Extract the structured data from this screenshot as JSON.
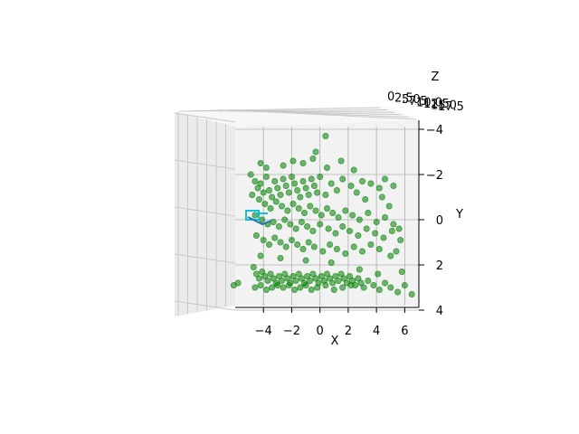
{
  "chart_data": {
    "type": "scatter",
    "projection": "3d",
    "view": "looking down the z axis; x horizontal, y vertical (inverted, -4 at top)",
    "title": "",
    "xlabel": "X",
    "ylabel": "Y",
    "zlabel": "Z",
    "xlim": [
      -6,
      7
    ],
    "ylim": [
      -4,
      4
    ],
    "y_inverted": true,
    "xticks": [
      "−4",
      "−2",
      "0",
      "2",
      "4",
      "6"
    ],
    "yticks": [
      "−4",
      "−2",
      "0",
      "2",
      "4"
    ],
    "zticks_overlapping": [
      "0",
      "2.5",
      "5.0",
      "7.5",
      "10.0",
      "12.5",
      "15.0",
      "17.5"
    ],
    "grid": true,
    "marker_color": "#008000",
    "marker_alpha": 0.55,
    "series": [
      {
        "points": [
          [
            -4.9,
            -2.0
          ],
          [
            -4.6,
            -1.7
          ],
          [
            -4.4,
            -1.4
          ],
          [
            -4.2,
            -1.6
          ],
          [
            -4.0,
            -1.2
          ],
          [
            -3.8,
            -1.9
          ],
          [
            -3.6,
            -1.3
          ],
          [
            -3.4,
            -1.0
          ],
          [
            -3.2,
            -1.7
          ],
          [
            -3.0,
            -1.4
          ],
          [
            -2.8,
            -1.1
          ],
          [
            -2.6,
            -1.8
          ],
          [
            -2.4,
            -1.5
          ],
          [
            -2.2,
            -1.2
          ],
          [
            -2.0,
            -1.9
          ],
          [
            -1.8,
            -1.6
          ],
          [
            -1.6,
            -1.3
          ],
          [
            -1.4,
            -1.0
          ],
          [
            -1.2,
            -1.7
          ],
          [
            -1.0,
            -1.4
          ],
          [
            -0.8,
            -1.1
          ],
          [
            -0.6,
            -1.8
          ],
          [
            -0.4,
            -1.5
          ],
          [
            -0.2,
            -1.2
          ],
          [
            0.0,
            -1.9
          ],
          [
            0.4,
            -1.1
          ],
          [
            0.8,
            -1.6
          ],
          [
            1.2,
            -1.3
          ],
          [
            1.6,
            -1.8
          ],
          [
            2.2,
            -1.5
          ],
          [
            2.6,
            -1.2
          ],
          [
            3.0,
            -1.7
          ],
          [
            3.6,
            -1.6
          ],
          [
            4.2,
            -1.4
          ],
          [
            4.6,
            -1.8
          ],
          [
            5.2,
            -1.5
          ],
          [
            -4.8,
            -1.1
          ],
          [
            -4.3,
            -0.9
          ],
          [
            -3.9,
            -0.7
          ],
          [
            -3.5,
            -0.5
          ],
          [
            -3.1,
            -0.8
          ],
          [
            -2.7,
            -0.6
          ],
          [
            -2.3,
            -0.4
          ],
          [
            -1.9,
            -0.7
          ],
          [
            -1.5,
            -0.5
          ],
          [
            -1.1,
            -0.3
          ],
          [
            -0.7,
            -0.6
          ],
          [
            -0.3,
            -0.4
          ],
          [
            0.1,
            -0.2
          ],
          [
            0.5,
            -0.5
          ],
          [
            0.9,
            -0.3
          ],
          [
            1.3,
            -0.1
          ],
          [
            1.8,
            -0.4
          ],
          [
            2.3,
            -0.2
          ],
          [
            2.8,
            0.0
          ],
          [
            3.4,
            -0.3
          ],
          [
            4.0,
            0.1
          ],
          [
            4.6,
            -0.1
          ],
          [
            5.2,
            0.2
          ],
          [
            5.6,
            0.4
          ],
          [
            -4.6,
            -0.2
          ],
          [
            -4.1,
            0.0
          ],
          [
            -3.7,
            0.2
          ],
          [
            -3.3,
            0.1
          ],
          [
            -2.9,
            0.3
          ],
          [
            -2.5,
            0.0
          ],
          [
            -2.1,
            0.2
          ],
          [
            -1.7,
            0.4
          ],
          [
            -1.3,
            0.1
          ],
          [
            -0.9,
            0.3
          ],
          [
            -0.5,
            0.5
          ],
          [
            0.0,
            0.2
          ],
          [
            0.6,
            0.4
          ],
          [
            1.1,
            0.6
          ],
          [
            1.6,
            0.3
          ],
          [
            2.1,
            0.5
          ],
          [
            2.7,
            0.7
          ],
          [
            3.3,
            0.4
          ],
          [
            3.9,
            0.6
          ],
          [
            4.5,
            0.8
          ],
          [
            5.1,
            0.5
          ],
          [
            5.7,
            0.9
          ],
          [
            -4.5,
            0.7
          ],
          [
            -4.0,
            0.9
          ],
          [
            -3.6,
            1.1
          ],
          [
            -3.2,
            0.8
          ],
          [
            -2.8,
            1.0
          ],
          [
            -2.4,
            1.2
          ],
          [
            -2.0,
            0.9
          ],
          [
            -1.6,
            1.1
          ],
          [
            -1.2,
            1.3
          ],
          [
            -0.8,
            1.0
          ],
          [
            -0.4,
            1.2
          ],
          [
            0.2,
            1.4
          ],
          [
            0.7,
            1.1
          ],
          [
            1.2,
            1.3
          ],
          [
            1.8,
            1.5
          ],
          [
            2.4,
            1.2
          ],
          [
            3.0,
            1.4
          ],
          [
            3.6,
            1.1
          ],
          [
            4.2,
            1.3
          ],
          [
            5.0,
            1.6
          ],
          [
            -4.7,
            2.1
          ],
          [
            -4.5,
            2.4
          ],
          [
            -4.3,
            2.6
          ],
          [
            -4.1,
            2.3
          ],
          [
            -3.9,
            2.5
          ],
          [
            -3.7,
            2.7
          ],
          [
            -3.5,
            2.4
          ],
          [
            -3.3,
            2.6
          ],
          [
            -3.1,
            2.8
          ],
          [
            -2.9,
            2.5
          ],
          [
            -2.7,
            2.7
          ],
          [
            -2.5,
            2.4
          ],
          [
            -2.3,
            2.6
          ],
          [
            -2.1,
            2.8
          ],
          [
            -1.9,
            2.5
          ],
          [
            -1.7,
            2.7
          ],
          [
            -1.5,
            2.4
          ],
          [
            -1.3,
            2.6
          ],
          [
            -1.1,
            2.8
          ],
          [
            -0.9,
            2.5
          ],
          [
            -0.7,
            2.7
          ],
          [
            -0.5,
            2.4
          ],
          [
            -0.3,
            2.6
          ],
          [
            -0.1,
            2.8
          ],
          [
            0.1,
            2.5
          ],
          [
            0.3,
            2.7
          ],
          [
            0.5,
            2.4
          ],
          [
            0.7,
            2.6
          ],
          [
            0.9,
            2.8
          ],
          [
            1.1,
            2.5
          ],
          [
            1.3,
            2.7
          ],
          [
            1.5,
            2.4
          ],
          [
            1.7,
            2.6
          ],
          [
            1.9,
            2.8
          ],
          [
            2.1,
            2.5
          ],
          [
            2.3,
            2.7
          ],
          [
            2.5,
            2.9
          ],
          [
            2.7,
            2.6
          ],
          [
            2.9,
            2.8
          ],
          [
            3.1,
            3.0
          ],
          [
            3.4,
            2.7
          ],
          [
            3.8,
            2.9
          ],
          [
            4.2,
            3.1
          ],
          [
            4.6,
            2.8
          ],
          [
            5.0,
            3.0
          ],
          [
            5.5,
            3.2
          ],
          [
            6.0,
            2.9
          ],
          [
            6.5,
            3.3
          ],
          [
            -4.6,
            3.0
          ],
          [
            -4.2,
            2.9
          ],
          [
            -3.8,
            3.1
          ],
          [
            -3.4,
            3.0
          ],
          [
            -3.0,
            2.9
          ],
          [
            -2.6,
            3.0
          ],
          [
            -2.2,
            2.9
          ],
          [
            -1.8,
            3.1
          ],
          [
            -1.4,
            3.0
          ],
          [
            -1.0,
            2.9
          ],
          [
            -0.6,
            3.1
          ],
          [
            -0.2,
            3.0
          ],
          [
            0.4,
            2.9
          ],
          [
            1.0,
            3.1
          ],
          [
            1.6,
            3.0
          ],
          [
            2.2,
            2.9
          ],
          [
            -6.1,
            2.9
          ],
          [
            -5.8,
            2.8
          ],
          [
            -0.3,
            -3.0
          ],
          [
            0.4,
            -3.7
          ],
          [
            -4.2,
            -2.5
          ],
          [
            -3.8,
            -2.3
          ],
          [
            -2.6,
            -2.4
          ],
          [
            -1.9,
            -2.6
          ],
          [
            -1.2,
            -2.5
          ],
          [
            -0.5,
            -2.7
          ],
          [
            0.5,
            -2.3
          ],
          [
            1.5,
            -2.6
          ],
          [
            2.4,
            -2.2
          ],
          [
            4.4,
            -1.0
          ],
          [
            3.2,
            -0.9
          ],
          [
            4.9,
            -0.6
          ],
          [
            5.4,
            1.4
          ],
          [
            4.1,
            2.4
          ],
          [
            2.8,
            2.2
          ],
          [
            0.8,
            1.9
          ],
          [
            -1.0,
            1.8
          ],
          [
            -2.8,
            1.7
          ],
          [
            -4.2,
            1.6
          ],
          [
            5.8,
            2.3
          ]
        ]
      }
    ],
    "annotation_icon": "blue-quiver-glyph"
  }
}
